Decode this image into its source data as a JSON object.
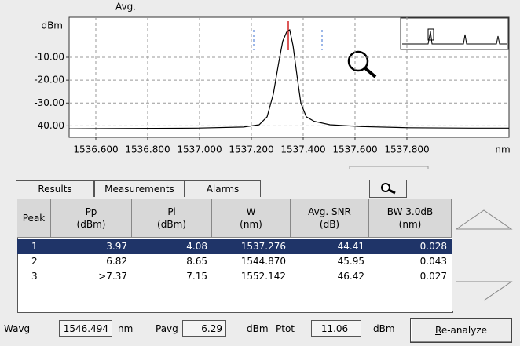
{
  "chart_data": {
    "type": "line",
    "subtitle": "Avg.",
    "y_label": "dBm",
    "x_label": "nm",
    "x": [
      1536.497,
      1536.685,
      1536.988,
      1537.17,
      1537.23,
      1537.261,
      1537.285,
      1537.306,
      1537.321,
      1537.336,
      1537.348,
      1537.361,
      1537.376,
      1537.391,
      1537.412,
      1537.442,
      1537.503,
      1537.624,
      1537.806,
      1538.048,
      1538.194
    ],
    "values": [
      -41.3,
      -41.2,
      -41,
      -40.5,
      -39.5,
      -36,
      -26,
      -12,
      -3,
      1,
      2,
      -5,
      -18,
      -30,
      -36,
      -38,
      -39.5,
      -40.3,
      -40.8,
      -41,
      -41
    ],
    "color": "#000000",
    "xlim": [
      1536.497,
      1538.194
    ],
    "xticks": [
      {
        "value": 1536.6,
        "label": "1536.600"
      },
      {
        "value": 1536.8,
        "label": "1536.800"
      },
      {
        "value": 1537.0,
        "label": "1537.000"
      },
      {
        "value": 1537.2,
        "label": "1537.200"
      },
      {
        "value": 1537.4,
        "label": "1537.400"
      },
      {
        "value": 1537.6,
        "label": "1537.600"
      },
      {
        "value": 1537.8,
        "label": "1537.800"
      }
    ],
    "ylim": [
      -45,
      7.5
    ],
    "yticks": [
      {
        "value": -10,
        "label": "-10.00"
      },
      {
        "value": -20,
        "label": "-20.00"
      },
      {
        "value": -30,
        "label": "-30.00"
      },
      {
        "value": -40,
        "label": "-40.00"
      }
    ],
    "grid": true
  },
  "tabs": [
    "Results",
    "Measurements",
    "Alarms"
  ],
  "table": {
    "headers": [
      {
        "name": "Peak"
      },
      {
        "name": "Pp",
        "unit": "(dBm)"
      },
      {
        "name": "Pi",
        "unit": "(dBm)"
      },
      {
        "name": "W",
        "unit": "(nm)"
      },
      {
        "name": "Avg. SNR",
        "unit": "(dB)"
      },
      {
        "name": "BW 3.0dB",
        "unit": "(nm)"
      }
    ],
    "rows": [
      [
        "1",
        "3.97",
        "4.08",
        "1537.276",
        "44.41",
        "0.028"
      ],
      [
        "2",
        "6.82",
        "8.65",
        "1544.870",
        "45.95",
        "0.043"
      ],
      [
        "3",
        ">7.37",
        "7.15",
        "1552.142",
        "46.42",
        "0.027"
      ]
    ]
  },
  "footer": {
    "wavg_label": "Wavg",
    "wavg": "1546.494",
    "wavg_unit": "nm",
    "pavg_label": "Pavg",
    "pavg": "6.29",
    "pavg_unit": "dBm",
    "ptot_label": "Ptot",
    "ptot": "11.06",
    "ptot_unit": "dBm",
    "button": "Re-analyze"
  }
}
